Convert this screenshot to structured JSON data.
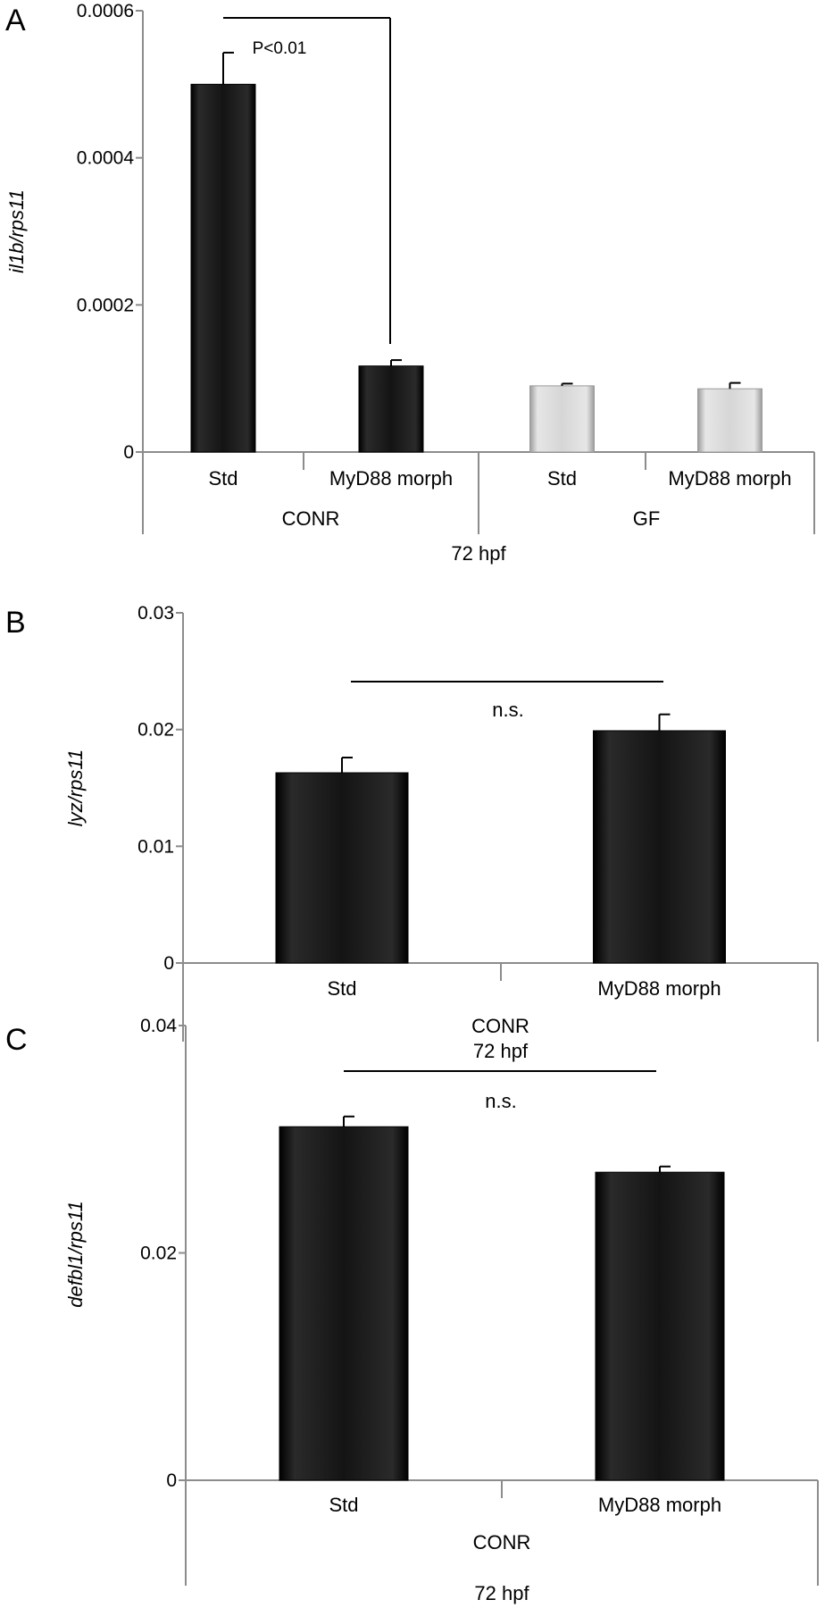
{
  "chart_data": [
    {
      "panel": "A",
      "type": "bar",
      "ylabel": "il1b/rps11",
      "ylim": [
        0,
        0.0006
      ],
      "yticks": [
        "0",
        "0.0002",
        "0.0004",
        "0.0006"
      ],
      "categories": [
        "Std",
        "MyD88 morph",
        "Std",
        "MyD88 morph"
      ],
      "groups": [
        "CONR",
        "GF"
      ],
      "group_of_category": [
        0,
        0,
        1,
        1
      ],
      "xlabel": "72 hpf",
      "values": [
        0.0005,
        0.000117,
        9e-05,
        8.6e-05
      ],
      "errors": [
        4.3e-05,
        8e-06,
        3e-06,
        8e-06
      ],
      "bar_colors": [
        "#111111",
        "#111111",
        "#d9d9d9",
        "#d9d9d9"
      ],
      "annotation": "P<0.01",
      "grid": false
    },
    {
      "panel": "B",
      "type": "bar",
      "ylabel": "lyz/rps11",
      "ylim": [
        0,
        0.03
      ],
      "yticks": [
        "0",
        "0.01",
        "0.02",
        "0.03"
      ],
      "categories": [
        "Std",
        "MyD88 morph"
      ],
      "group_lines": [
        "CONR",
        "72 hpf"
      ],
      "values": [
        0.0163,
        0.0199
      ],
      "errors": [
        0.0013,
        0.0014
      ],
      "bar_colors": [
        "#111111",
        "#111111"
      ],
      "annotation": "n.s.",
      "grid": false
    },
    {
      "panel": "C",
      "type": "bar",
      "ylabel": "defbl1/rps11",
      "ylim": [
        0,
        0.04
      ],
      "yticks": [
        "0",
        "0.02",
        "0.04"
      ],
      "categories": [
        "Std",
        "MyD88 morph"
      ],
      "group_lines": [
        "CONR",
        "72 hpf"
      ],
      "values": [
        0.0311,
        0.0271
      ],
      "errors": [
        0.0009,
        0.0005
      ],
      "bar_colors": [
        "#111111",
        "#111111"
      ],
      "annotation": "n.s.",
      "grid": false
    }
  ]
}
